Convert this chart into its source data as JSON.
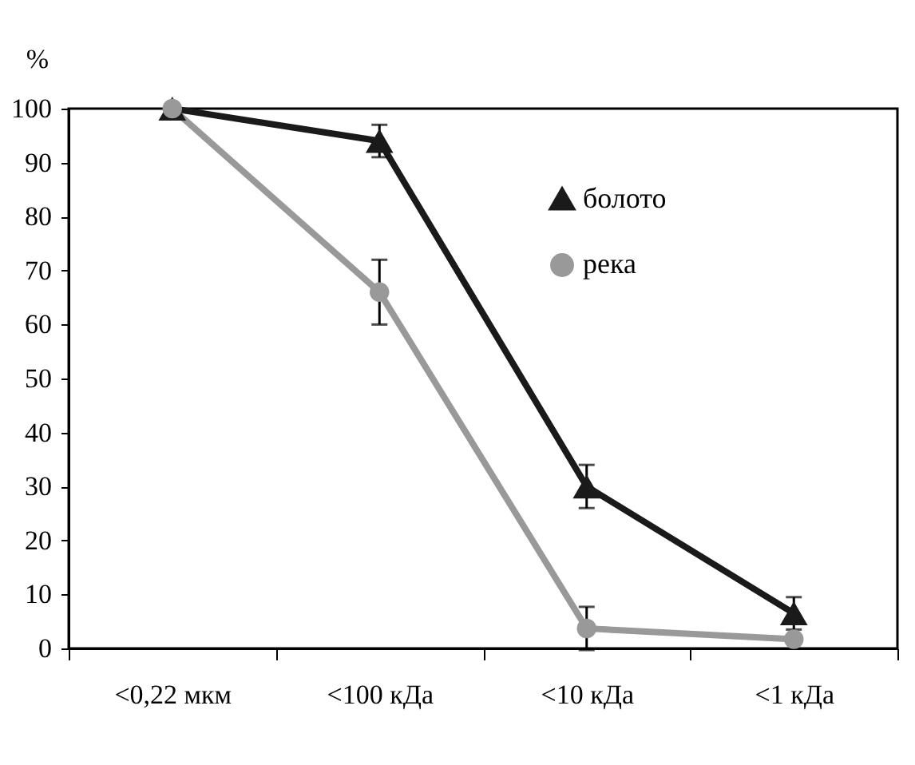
{
  "chart_data": {
    "type": "line",
    "ylabel": "%",
    "categories": [
      "<0,22 мкм",
      "<100 кДа",
      "<10 кДа",
      "<1 кДа"
    ],
    "series": [
      {
        "name": "болото",
        "color": "#1a1a1a",
        "marker": "triangle",
        "values": [
          100,
          94,
          30,
          6.5
        ],
        "errors": [
          null,
          3,
          4,
          3
        ]
      },
      {
        "name": "река",
        "color": "#999999",
        "marker": "circle",
        "values": [
          100,
          66,
          3.7,
          1.7
        ],
        "errors": [
          null,
          6,
          4,
          null
        ]
      }
    ],
    "ylim": [
      0,
      100
    ],
    "yticks": [
      0,
      10,
      20,
      30,
      40,
      50,
      60,
      70,
      80,
      90,
      100
    ],
    "grid": false,
    "legend": "top right"
  }
}
